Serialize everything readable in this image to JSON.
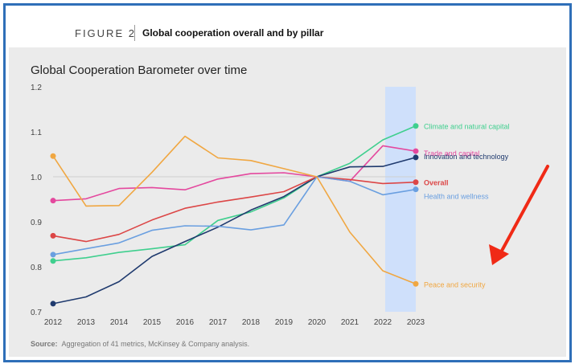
{
  "header": {
    "figure_label": "FIGURE 2",
    "figure_title": "Global cooperation overall and by pillar"
  },
  "source": {
    "label": "Source:",
    "text": "Aggregation of 41 metrics, McKinsey & Company analysis."
  },
  "colors": {
    "panel_bg": "#ebebeb",
    "highlight": "#cfe0fb",
    "arrow": "#f02a16"
  },
  "chart_data": {
    "type": "line",
    "title": "Global Cooperation Barometer over time",
    "x": [
      "2012",
      "2013",
      "2014",
      "2015",
      "2016",
      "2017",
      "2018",
      "2019",
      "2020",
      "2021",
      "2022",
      "2023"
    ],
    "ylim": [
      0.7,
      1.2
    ],
    "yticks": [
      "0.7",
      "0.8",
      "0.9",
      "1.0",
      "1.1",
      "1.2"
    ],
    "reference_line": 1.0,
    "highlight_range": [
      "2022",
      "2023"
    ],
    "annotation": "arrow pointing to Peace and security",
    "series": [
      {
        "name": "Climate and natural capital",
        "color": "#3fcf8e",
        "values": [
          0.813,
          0.82,
          0.832,
          0.84,
          0.849,
          0.903,
          0.922,
          0.953,
          1.0,
          1.03,
          1.082,
          1.113
        ]
      },
      {
        "name": "Trade and capital",
        "color": "#e4489e",
        "values": [
          0.947,
          0.951,
          0.974,
          0.976,
          0.971,
          0.995,
          1.007,
          1.009,
          1.0,
          0.99,
          1.069,
          1.057
        ]
      },
      {
        "name": "Innovation and technology",
        "color": "#1f3a6e",
        "values": [
          0.718,
          0.733,
          0.767,
          0.823,
          0.856,
          0.888,
          0.926,
          0.956,
          1.0,
          1.022,
          1.023,
          1.043
        ]
      },
      {
        "name": "Overall",
        "color": "#dc4646",
        "values": [
          0.869,
          0.856,
          0.872,
          0.904,
          0.93,
          0.944,
          0.955,
          0.967,
          1.0,
          0.994,
          0.985,
          0.988
        ]
      },
      {
        "name": "Health and wellness",
        "color": "#6a9fe0",
        "values": [
          0.827,
          0.84,
          0.853,
          0.881,
          0.891,
          0.89,
          0.882,
          0.893,
          1.0,
          0.99,
          0.96,
          0.972
        ]
      },
      {
        "name": "Peace and security",
        "color": "#f0a742",
        "values": [
          1.046,
          0.935,
          0.936,
          1.01,
          1.09,
          1.042,
          1.036,
          1.018,
          1.0,
          0.877,
          0.791,
          0.762
        ]
      }
    ]
  }
}
